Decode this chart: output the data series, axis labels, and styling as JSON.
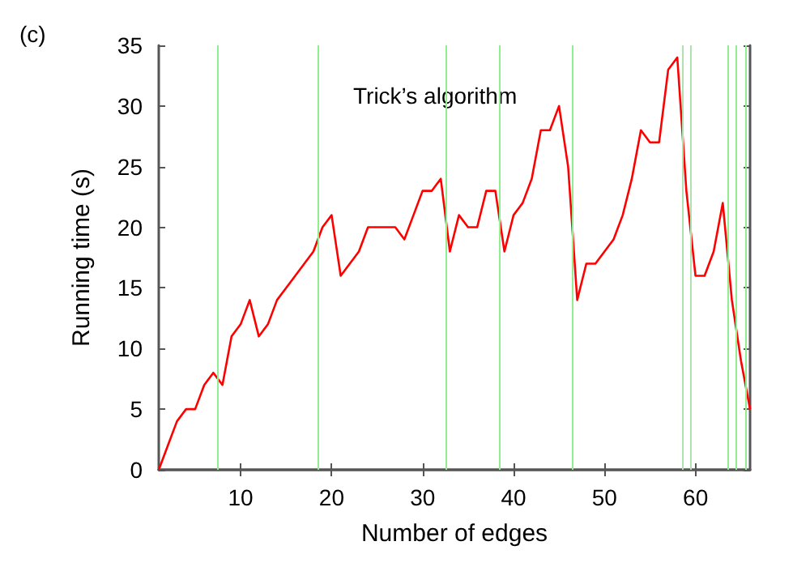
{
  "chart_data": {
    "type": "line",
    "xlabel": "Number of edges",
    "ylabel": "Running time (s)",
    "annotations": [
      "(c)",
      "Trick’s algorithm"
    ],
    "x": [
      1,
      2,
      3,
      4,
      5,
      6,
      7,
      8,
      9,
      10,
      11,
      12,
      13,
      14,
      15,
      16,
      17,
      18,
      19,
      20,
      21,
      22,
      23,
      24,
      25,
      26,
      27,
      28,
      29,
      30,
      31,
      32,
      33,
      34,
      35,
      36,
      37,
      38,
      39,
      40,
      41,
      42,
      43,
      44,
      45,
      46,
      47,
      48,
      49,
      50,
      51,
      52,
      53,
      54,
      55,
      56,
      57,
      58,
      59,
      60,
      61,
      62,
      63,
      64,
      65,
      66
    ],
    "series": [
      {
        "color": "#ff0000",
        "values": [
          0,
          2,
          4,
          5,
          5,
          7,
          8,
          7,
          11,
          12,
          14,
          11,
          12,
          14,
          15,
          16,
          17,
          18,
          20,
          21,
          16,
          17,
          18,
          20,
          20,
          20,
          20,
          19,
          21,
          23,
          23,
          24,
          18,
          21,
          20,
          20,
          23,
          23,
          18,
          21,
          22,
          24,
          28,
          28,
          30,
          25,
          14,
          17,
          17,
          18,
          19,
          21,
          24,
          28,
          27,
          27,
          33,
          34,
          23,
          16,
          16,
          18,
          22,
          14,
          9,
          5
        ]
      }
    ],
    "xlim": [
      1,
      66
    ],
    "ylim": [
      0,
      35
    ],
    "xticks": [
      10,
      20,
      30,
      40,
      50,
      60
    ],
    "yticks": [
      0,
      5,
      10,
      15,
      20,
      25,
      30,
      35
    ],
    "grid": false,
    "marker": "none",
    "line_style": "solid",
    "ref_lines": [
      {
        "axis": "x",
        "value": 7.5,
        "color": "#90ee90"
      },
      {
        "axis": "x",
        "value": 18.5,
        "color": "#90ee90"
      },
      {
        "axis": "x",
        "value": 32.5,
        "color": "#90ee90"
      },
      {
        "axis": "x",
        "value": 38.5,
        "color": "#90ee90"
      },
      {
        "axis": "x",
        "value": 46.5,
        "color": "#90ee90"
      },
      {
        "axis": "x",
        "value": 58.5,
        "color": "#b0e0b0"
      },
      {
        "axis": "x",
        "value": 59.5,
        "color": "#b0e0b0"
      },
      {
        "axis": "x",
        "value": 63.5,
        "color": "#90ee90"
      },
      {
        "axis": "x",
        "value": 64.5,
        "color": "#90ee90"
      },
      {
        "axis": "x",
        "value": 65.5,
        "color": "#90ee90"
      }
    ]
  }
}
